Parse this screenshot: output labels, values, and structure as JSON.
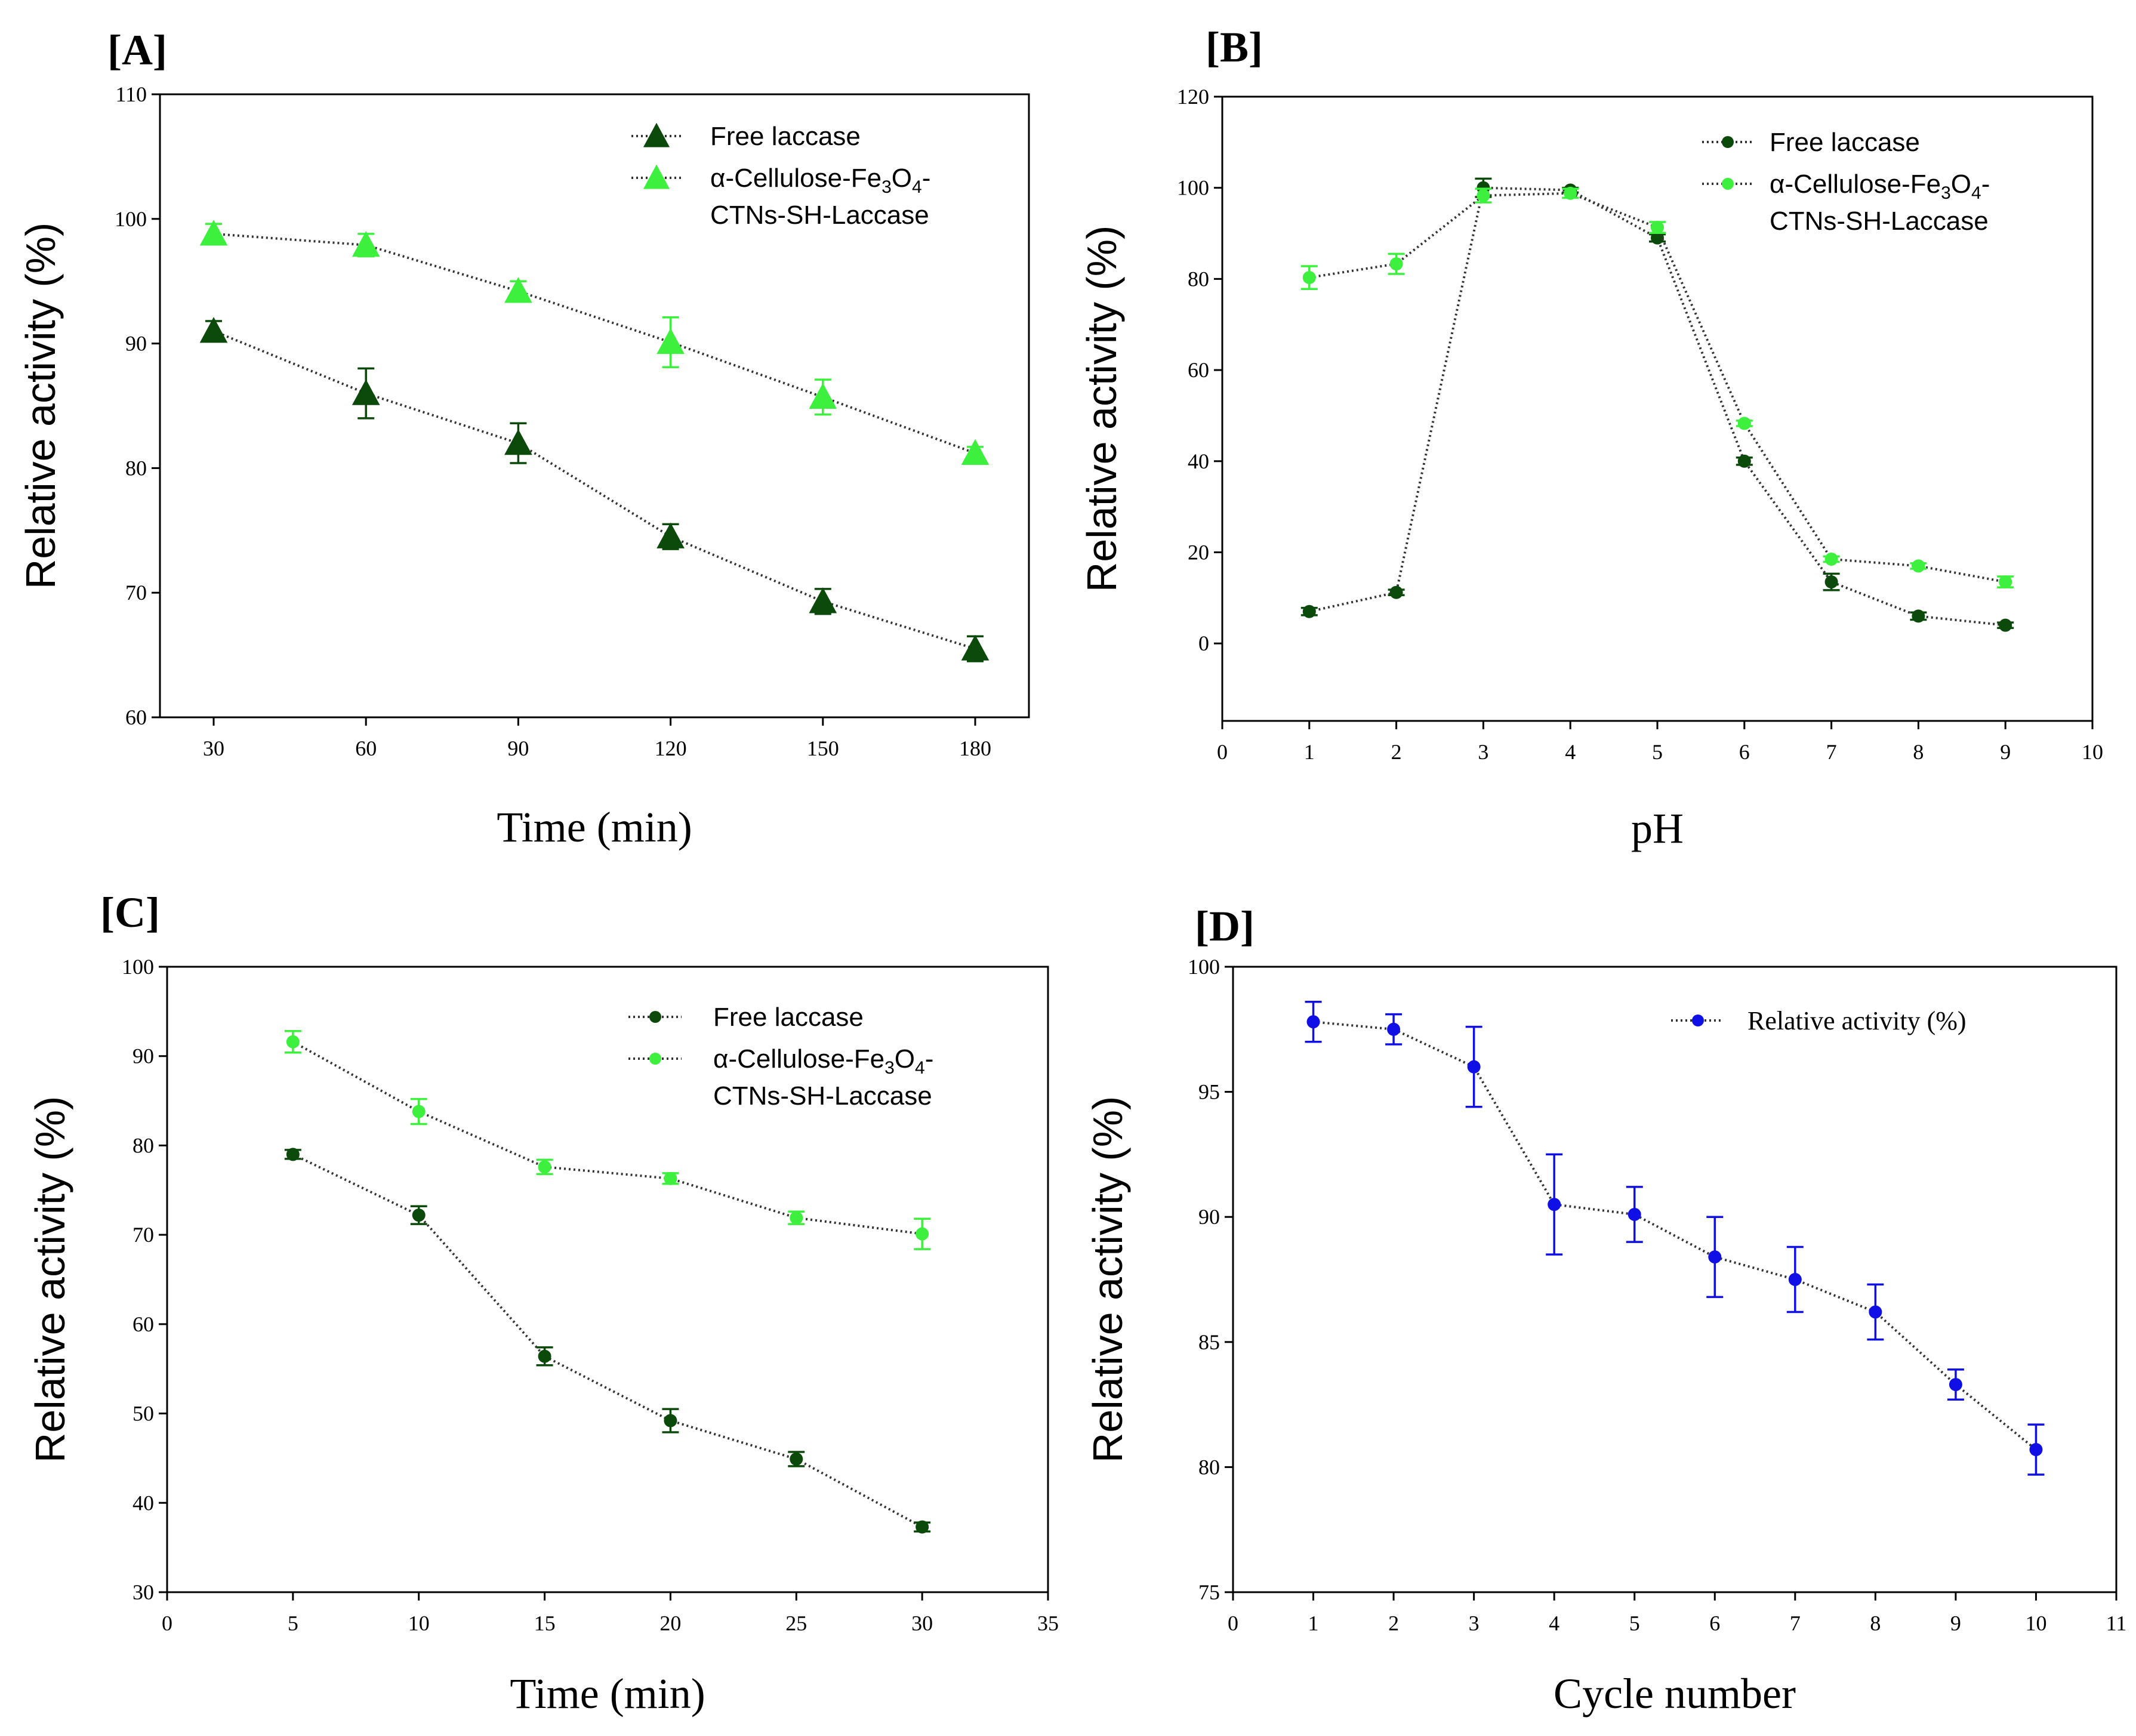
{
  "chart_data": [
    {
      "panel": "[A]",
      "type": "line",
      "xlabel": "Time (min)",
      "ylabel": "Relative activity (%)",
      "xaxis": "categorical",
      "x": [
        30,
        60,
        90,
        120,
        150,
        180
      ],
      "xticks": [
        "30",
        "60",
        "90",
        "120",
        "150",
        "180"
      ],
      "ylim": [
        60,
        110
      ],
      "yticks": [
        "60",
        "70",
        "80",
        "90",
        "100",
        "110"
      ],
      "marker": "triangle",
      "legend_position": "top-right",
      "series": [
        {
          "name": "Free laccase",
          "color": "#0b4a0b",
          "values": [
            91,
            86,
            82,
            74.5,
            69.3,
            65.5
          ],
          "errors": [
            0.8,
            2.0,
            1.6,
            1.0,
            1.0,
            1.0
          ]
        },
        {
          "name_parts": [
            "α-Cellulose-Fe",
            "3",
            "O",
            "4",
            "-",
            "CTNs-SH-Laccase"
          ],
          "color": "#3df03d",
          "values": [
            98.8,
            97.9,
            94.2,
            90.1,
            85.7,
            81.2
          ],
          "errors": [
            0.8,
            0.9,
            0.8,
            2.0,
            1.4,
            0.5
          ]
        }
      ]
    },
    {
      "panel": "[B]",
      "type": "line",
      "xlabel": "pH",
      "ylabel": "Relative activity (%)",
      "xlim": [
        0,
        10
      ],
      "xticks": [
        "0",
        "1",
        "2",
        "3",
        "4",
        "5",
        "6",
        "7",
        "8",
        "9",
        "10"
      ],
      "ylim": [
        -17,
        120
      ],
      "yticks": [
        "0",
        "20",
        "40",
        "60",
        "80",
        "100",
        "120"
      ],
      "marker": "circle",
      "legend_position": "top-right",
      "series": [
        {
          "name": "Free laccase",
          "color": "#0b4a0b",
          "x": [
            1,
            2,
            3,
            4,
            5,
            6,
            7,
            8,
            9
          ],
          "values": [
            7,
            11.2,
            100,
            99.5,
            89,
            40,
            13.5,
            6,
            4
          ],
          "errors": [
            0.8,
            0.6,
            2.0,
            0.5,
            0.8,
            0.8,
            1.8,
            0.8,
            0.6
          ]
        },
        {
          "name_parts": [
            "α-Cellulose-Fe",
            "3",
            "O",
            "4",
            "-",
            "CTNs-SH-Laccase"
          ],
          "color": "#3df03d",
          "x": [
            1,
            2,
            3,
            4,
            5,
            6,
            7,
            8,
            9
          ],
          "values": [
            80.3,
            83.3,
            98.3,
            98.8,
            91.3,
            48.3,
            18.5,
            17,
            13.5
          ],
          "errors": [
            2.5,
            2.2,
            1.5,
            1.0,
            1.2,
            0.6,
            0.6,
            0.6,
            1.2
          ]
        }
      ]
    },
    {
      "panel": "[C]",
      "type": "line",
      "xlabel": "Time (min)",
      "ylabel": "Relative activity (%)",
      "xlim": [
        0,
        35
      ],
      "xticks": [
        "0",
        "5",
        "10",
        "15",
        "20",
        "25",
        "30",
        "35"
      ],
      "ylim": [
        30,
        100
      ],
      "yticks": [
        "30",
        "40",
        "50",
        "60",
        "70",
        "80",
        "90",
        "100"
      ],
      "marker": "circle",
      "legend_position": "top-right",
      "series": [
        {
          "name": "Free laccase",
          "color": "#0b4a0b",
          "x": [
            5,
            10,
            15,
            20,
            25,
            30
          ],
          "values": [
            79,
            72.2,
            56.4,
            49.2,
            44.9,
            37.3
          ],
          "errors": [
            0.5,
            1.0,
            1.0,
            1.3,
            0.8,
            0.5
          ]
        },
        {
          "name_parts": [
            "α-Cellulose-Fe",
            "3",
            "O",
            "4",
            "-",
            "CTNs-SH-Laccase"
          ],
          "color": "#3df03d",
          "x": [
            5,
            10,
            15,
            20,
            25,
            30
          ],
          "values": [
            91.6,
            83.8,
            77.6,
            76.3,
            71.9,
            70.1
          ],
          "errors": [
            1.2,
            1.4,
            0.8,
            0.6,
            0.7,
            1.7
          ]
        }
      ]
    },
    {
      "panel": "[D]",
      "type": "line",
      "xlabel": "Cycle number",
      "ylabel": "Relative activity (%)",
      "xlim": [
        0,
        11
      ],
      "xticks": [
        "0",
        "1",
        "2",
        "3",
        "4",
        "5",
        "6",
        "7",
        "8",
        "9",
        "10",
        "11"
      ],
      "ylim": [
        75,
        100
      ],
      "yticks": [
        "75",
        "80",
        "85",
        "90",
        "95",
        "100"
      ],
      "marker": "circle",
      "legend_position": "top-right",
      "series": [
        {
          "name": "Relative activity (%)",
          "color": "#1010e6",
          "x": [
            1,
            2,
            3,
            4,
            5,
            6,
            7,
            8,
            9,
            10
          ],
          "values": [
            97.8,
            97.5,
            96.0,
            90.5,
            90.1,
            88.4,
            87.5,
            86.2,
            83.3,
            80.7
          ],
          "errors": [
            0.8,
            0.6,
            1.6,
            2.0,
            1.1,
            1.6,
            1.3,
            1.1,
            0.6,
            1.0
          ]
        }
      ]
    }
  ]
}
